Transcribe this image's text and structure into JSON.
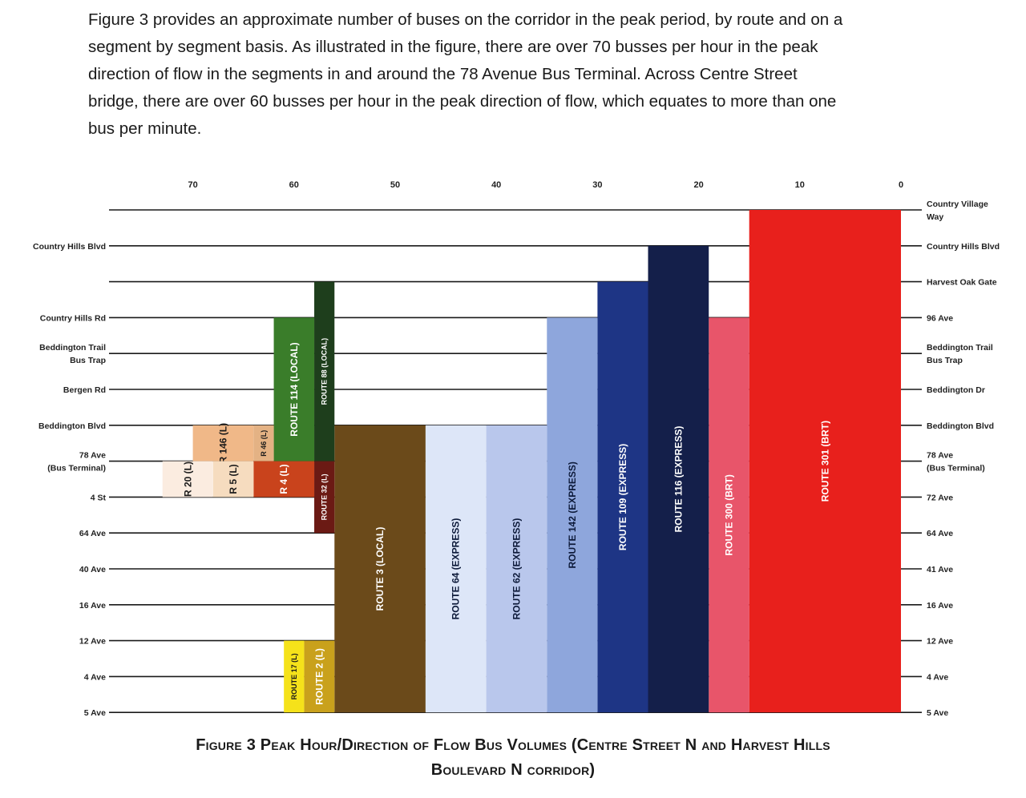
{
  "paragraph": [
    "Figure 3 provides an approximate number of buses on the corridor in the peak period, by route and on a",
    "segment by segment basis. As illustrated in the figure, there are over 70 busses per hour in the peak",
    "direction of flow in the segments in and around the 78 Avenue Bus Terminal. Across Centre Street",
    "bridge, there are over 60 busses per hour in the peak direction of flow, which equates to more than one",
    "bus per minute."
  ],
  "caption": [
    "Figure 3 Peak Hour/Direction of Flow Bus Volumes (Centre Street N and Harvest Hills",
    "Boulevard N corridor)"
  ],
  "chart_data": {
    "type": "bar",
    "orientation": "stacked-horizontal-volumes",
    "x_ticks": [
      70,
      60,
      50,
      40,
      30,
      20,
      10,
      0
    ],
    "x_direction": "decreasing-left-to-right",
    "segments_left": [
      "",
      "Country Hills Blvd",
      "",
      "Country Hills Rd",
      "Beddington Trail\nBus Trap",
      "Bergen Rd",
      "Beddington Blvd",
      "78 Ave\n(Bus Terminal)",
      "4 St",
      "64 Ave",
      "40 Ave",
      "16 Ave",
      "12 Ave",
      "4 Ave",
      "5 Ave"
    ],
    "segments_right": [
      "Country Village\nWay",
      "Country Hills Blvd",
      "Harvest Oak Gate",
      "96 Ave",
      "Beddington Trail\nBus Trap",
      "Beddington Dr",
      "Beddington Blvd",
      "78 Ave\n(Bus Terminal)",
      "72 Ave",
      "64 Ave",
      "41 Ave",
      "16 Ave",
      "12 Ave",
      "4 Ave",
      "5 Ave"
    ],
    "routes": [
      {
        "name": "ROUTE 301 (BRT)",
        "from": 0,
        "to": 14,
        "vol": 15,
        "color": "#e8201c",
        "text": "#ffffff"
      },
      {
        "name": "ROUTE 300 (BRT)",
        "from": 3,
        "to": 14,
        "vol": 4,
        "color": "#e8556a",
        "text": "#ffffff"
      },
      {
        "name": "ROUTE 116 (EXPRESS)",
        "from": 1,
        "to": 14,
        "vol": 6,
        "color": "#141f4a",
        "text": "#ffffff"
      },
      {
        "name": "ROUTE 109 (EXPRESS)",
        "from": 2,
        "to": 14,
        "vol": 5,
        "color": "#1e3585",
        "text": "#ffffff"
      },
      {
        "name": "ROUTE 142 (EXPRESS)",
        "from": 3,
        "to": 14,
        "vol": 5,
        "color": "#8ea6dc",
        "text": "#0d1a3a"
      },
      {
        "name": "ROUTE 62 (EXPRESS)",
        "from": 6,
        "to": 14,
        "vol": 6,
        "color": "#b9c7ec",
        "text": "#0d1a3a"
      },
      {
        "name": "ROUTE 64 (EXPRESS)",
        "from": 6,
        "to": 14,
        "vol": 6,
        "color": "#dde6f8",
        "text": "#0d1a3a"
      },
      {
        "name": "ROUTE 3 (LOCAL)",
        "from": 6,
        "to": 14,
        "vol": 9,
        "color": "#6b4a1a",
        "text": "#ffffff"
      },
      {
        "name": "ROUTE 88 (LOCAL)",
        "from": 2,
        "to": 7,
        "vol": 2,
        "color": "#1e3e1c",
        "text": "#ffffff"
      },
      {
        "name": "ROUTE 32 (L)",
        "from": 7,
        "to": 9,
        "vol": 2,
        "color": "#6b1a14",
        "text": "#ffffff"
      },
      {
        "name": "ROUTE 114 (LOCAL)",
        "from": 3,
        "to": 7,
        "vol": 4,
        "color": "#3a7d2a",
        "text": "#ffffff"
      },
      {
        "name": "R 46 (L)",
        "from": 6,
        "to": 7,
        "vol": 2,
        "color": "#e4b284",
        "text": "#1a1a1a"
      },
      {
        "name": "R 146 (L)",
        "from": 6,
        "to": 7,
        "vol": 6,
        "color": "#f0b888",
        "text": "#1a1a1a"
      },
      {
        "name": "R 4 (L)",
        "from": 7,
        "to": 8,
        "vol": 6,
        "color": "#c9431c",
        "text": "#ffffff"
      },
      {
        "name": "R 5 (L)",
        "from": 7,
        "to": 8,
        "vol": 4,
        "color": "#f6dcbf",
        "text": "#1a1a1a"
      },
      {
        "name": "R 20 (L)",
        "from": 7,
        "to": 8,
        "vol": 5,
        "color": "#fbece0",
        "text": "#1a1a1a"
      },
      {
        "name": "ROUTE 2 (L)",
        "from": 12,
        "to": 14,
        "vol": 3,
        "color": "#c9a11c",
        "text": "#ffffff"
      },
      {
        "name": "ROUTE 17 (L)",
        "from": 12,
        "to": 14,
        "vol": 2,
        "color": "#f5e21a",
        "text": "#1a1a1a"
      }
    ]
  }
}
